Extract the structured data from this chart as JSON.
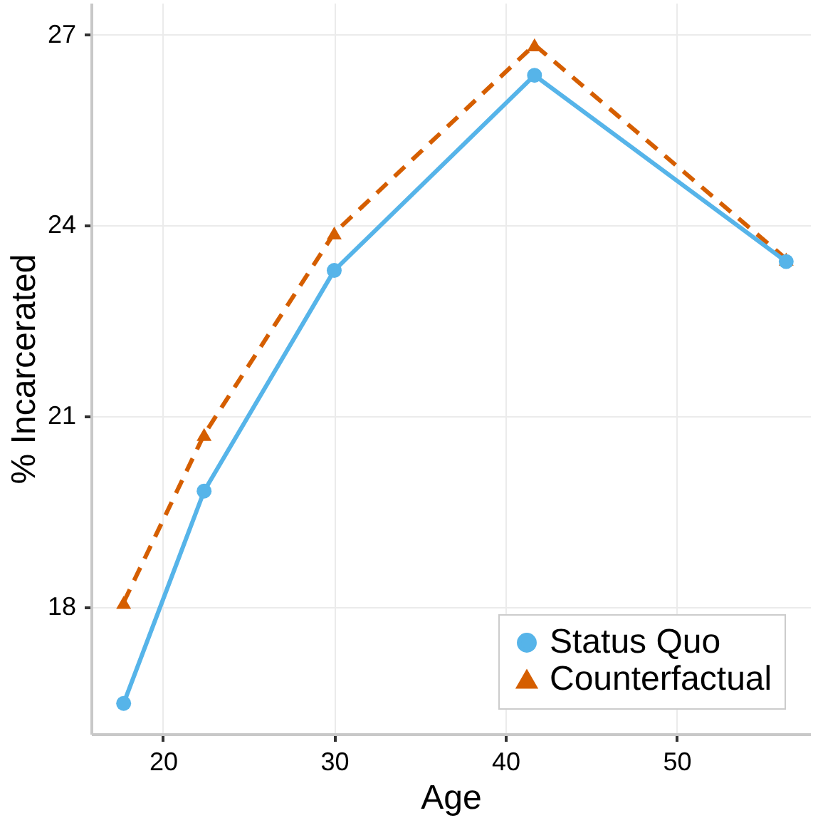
{
  "chart_data": {
    "type": "line",
    "xlabel": "Age",
    "ylabel": "% Incarcerated",
    "xlim": [
      15.8,
      57.8
    ],
    "xticks": [
      20,
      30,
      40,
      50
    ],
    "ylim": [
      16.0,
      27.5
    ],
    "yticks": [
      18,
      21,
      24,
      27
    ],
    "grid": true,
    "legend": "bottom right",
    "series": [
      {
        "name": "Status Quo",
        "color": "#56b4e9",
        "marker": "circle",
        "line_style": "solid",
        "x": [
          17.7,
          22.4,
          30.0,
          41.7,
          56.4
        ],
        "values": [
          16.48,
          19.82,
          23.29,
          26.36,
          23.43
        ]
      },
      {
        "name": "Counterfactual",
        "color": "#d55e00",
        "marker": "triangle",
        "line_style": "dashed",
        "x": [
          17.7,
          22.4,
          30.0,
          41.7,
          56.4
        ],
        "values": [
          18.07,
          20.71,
          23.88,
          26.84,
          23.47
        ]
      }
    ]
  }
}
